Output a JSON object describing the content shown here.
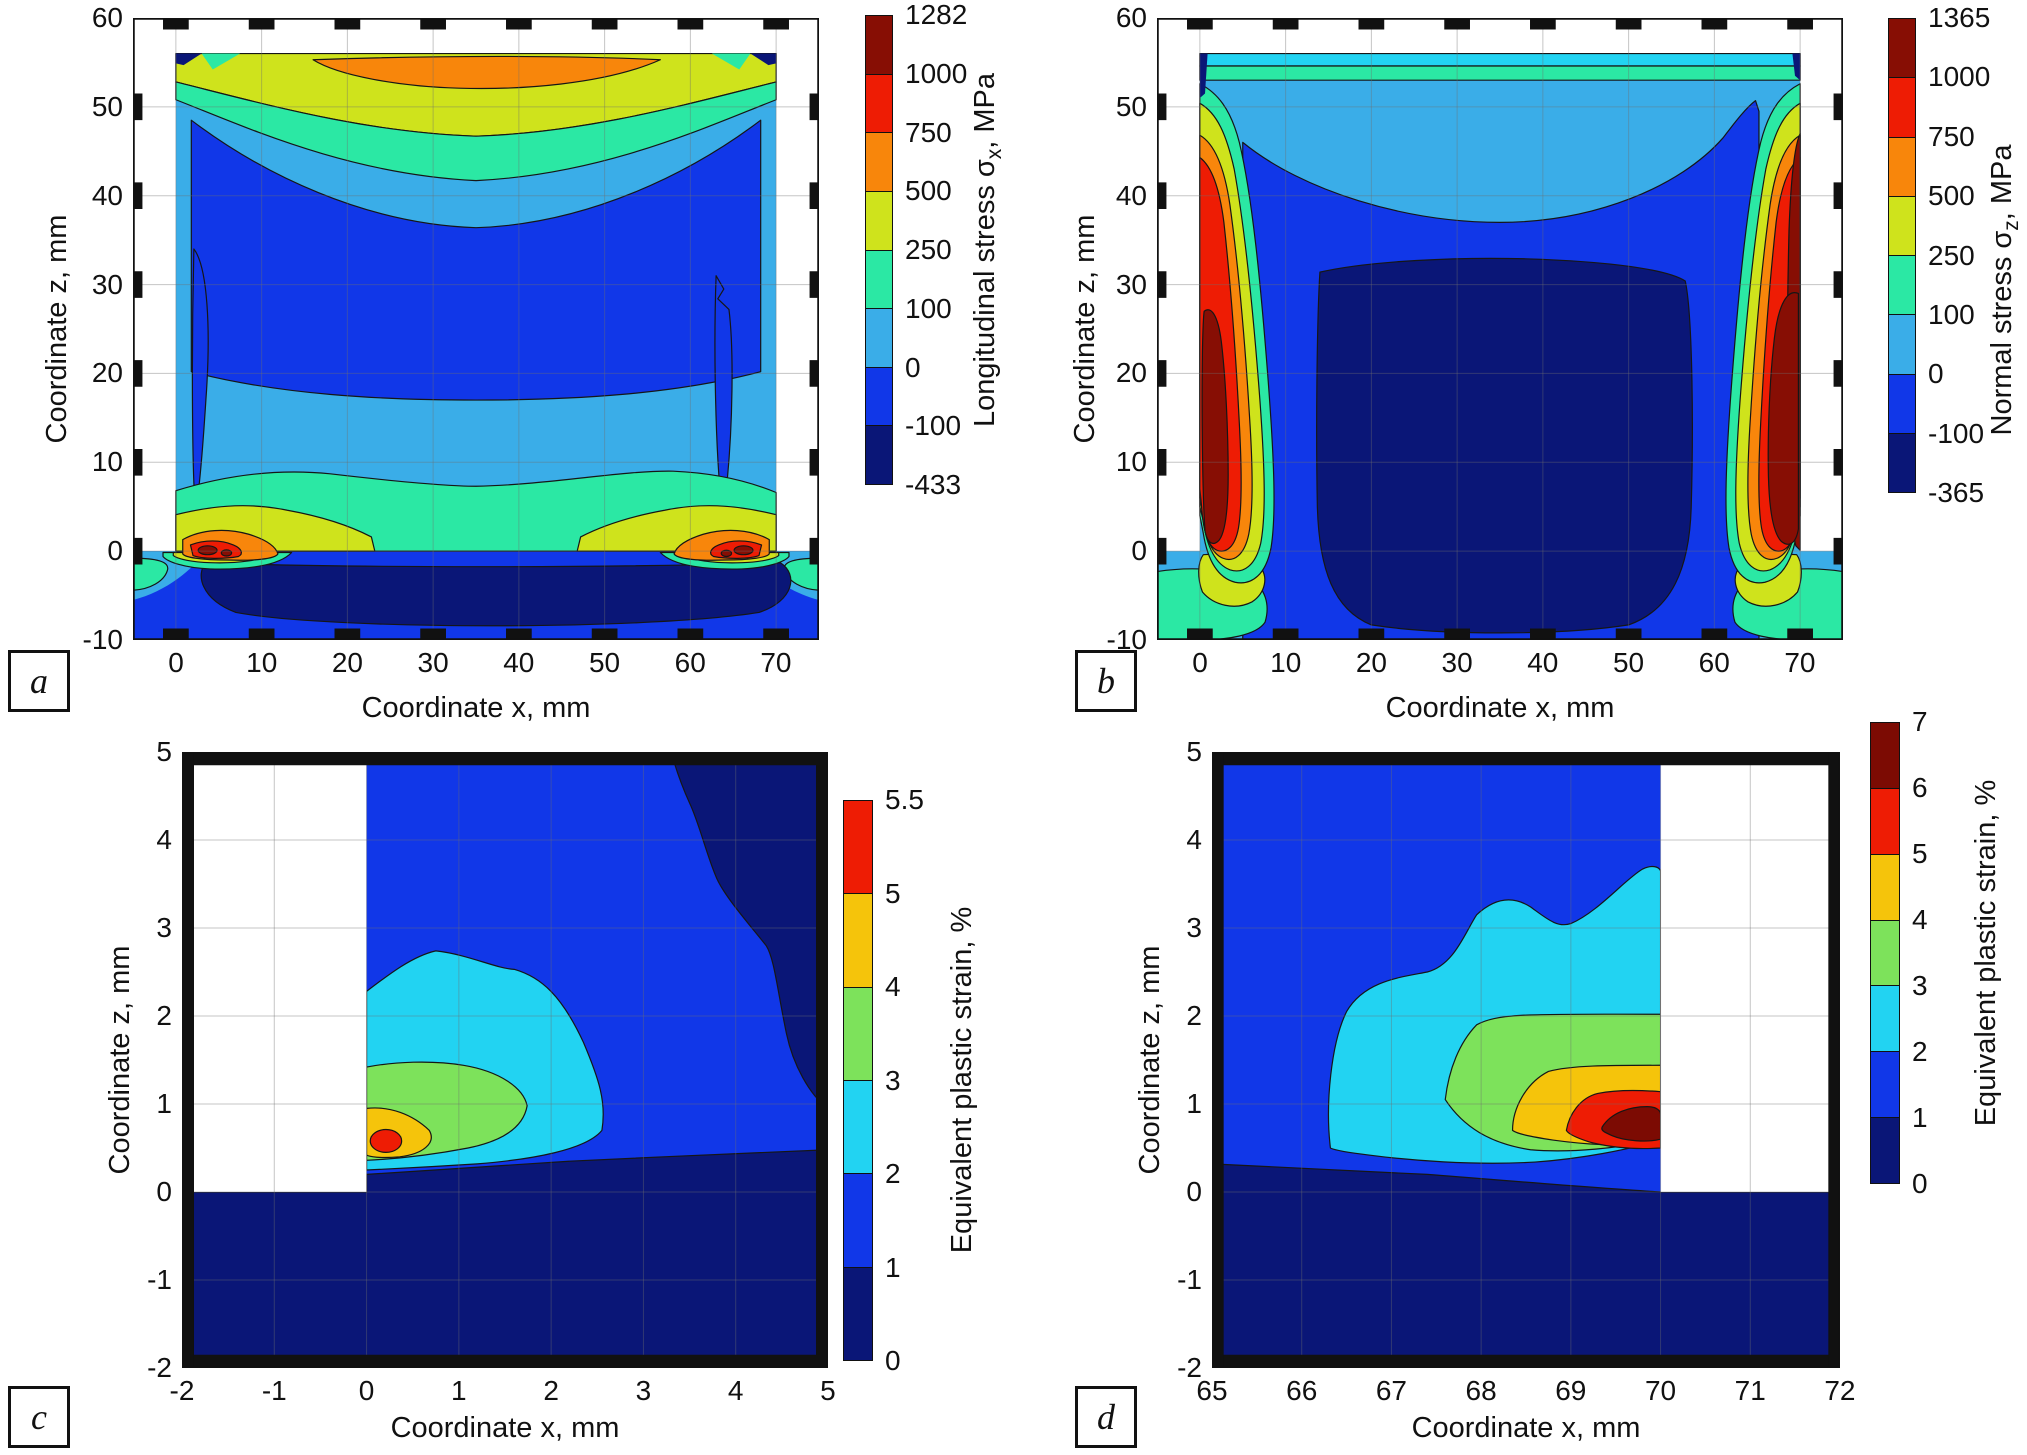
{
  "palette": {
    "darkred": "#870e04",
    "red": "#ee1c04",
    "orange": "#f8860b",
    "yellow": "#cfe31c",
    "spring": "#2be8a4",
    "sky": "#3aade8",
    "blue": "#1137e8",
    "navy": "#0a1677",
    "cyan": "#22d3f2",
    "lgreen": "#7de25b",
    "amber": "#f5c40b",
    "dred2": "#7c0b03"
  },
  "chart_data": [
    {
      "id": "a",
      "type": "contour",
      "badge": "a",
      "xlabel": "Coordinate x, mm",
      "ylabel": "Coordinate z, mm",
      "xlim": [
        -5,
        75
      ],
      "ylim": [
        -10,
        60
      ],
      "x_ticks": [
        "0",
        "10",
        "20",
        "30",
        "40",
        "50",
        "60",
        "70"
      ],
      "y_ticks": [
        "60",
        "50",
        "40",
        "30",
        "20",
        "10",
        "0",
        "-10"
      ],
      "colorbar": {
        "label_prefix": "Longitudinal stress σ",
        "label_sub": "x",
        "label_suffix": ", MPa",
        "tick_labels": [
          "1282",
          "1000",
          "750",
          "500",
          "250",
          "100",
          "0",
          "-100",
          "-433"
        ],
        "levels_mpa": [
          1282,
          1000,
          750,
          500,
          250,
          100,
          0,
          -100,
          -433
        ],
        "colors": [
          "#870e04",
          "#ee1c04",
          "#f8860b",
          "#cfe31c",
          "#2be8a4",
          "#3aade8",
          "#1137e8",
          "#0a1677"
        ]
      },
      "features": {
        "description": "Longitudinal residual stress in deposited wall (x 0–70 mm, z 0–56 mm) on substrate plate (z −10–0 mm)",
        "top_tension_band": "σx ≈ 500–750 MPa lens at top surface z ≈ 52–56 mm, x ≈ 16–57 mm",
        "peak_tension_spots_mm": [
          {
            "x": 4,
            "z": 0
          },
          {
            "x": 65,
            "z": 0
          }
        ],
        "peak_value_mpa": 1282,
        "substrate_compression": "σx ≈ −433…−100 MPa in substrate core z ≈ −1…−8 mm",
        "interior": "σx ≈ −100…100 MPa in wall interior"
      }
    },
    {
      "id": "b",
      "type": "contour",
      "badge": "b",
      "xlabel": "Coordinate x, mm",
      "ylabel": "Coordinate z, mm",
      "xlim": [
        -5,
        75
      ],
      "ylim": [
        -10,
        60
      ],
      "x_ticks": [
        "0",
        "10",
        "20",
        "30",
        "40",
        "50",
        "60",
        "70"
      ],
      "y_ticks": [
        "60",
        "50",
        "40",
        "30",
        "20",
        "10",
        "0",
        "-10"
      ],
      "colorbar": {
        "label_prefix": "Normal stress σ",
        "label_sub": "z",
        "label_suffix": ", MPa",
        "tick_labels": [
          "1365",
          "1000",
          "750",
          "500",
          "250",
          "100",
          "0",
          "-100",
          "-365"
        ],
        "levels_mpa": [
          1365,
          1000,
          750,
          500,
          250,
          100,
          0,
          -100,
          -365
        ],
        "colors": [
          "#870e04",
          "#ee1c04",
          "#f8860b",
          "#cfe31c",
          "#2be8a4",
          "#3aade8",
          "#1137e8",
          "#0a1677"
        ]
      },
      "features": {
        "description": "Normal (vertical) residual stress: tension columns at both wall side faces, compression core in wall centre",
        "tension_columns_mm": [
          {
            "x": 2,
            "z_range": [
              0,
              45
            ]
          },
          {
            "x": 68,
            "z_range": [
              0,
              45
            ]
          }
        ],
        "peak_value_mpa": 1365,
        "compression_core": "σz ≈ −365…−100 MPa for x ≈ 15–55 mm, z ≈ −9…33 mm"
      }
    },
    {
      "id": "c",
      "type": "contour",
      "badge": "c",
      "xlabel": "Coordinate x, mm",
      "ylabel": "Coordinate z, mm",
      "xlim": [
        -2,
        5
      ],
      "ylim": [
        -2,
        5
      ],
      "x_ticks": [
        "-2",
        "-1",
        "0",
        "1",
        "2",
        "3",
        "4",
        "5"
      ],
      "y_ticks": [
        "5",
        "4",
        "3",
        "2",
        "1",
        "0",
        "-1",
        "-2"
      ],
      "colorbar": {
        "label_prefix": "Equivalent plastic strain, %",
        "label_sub": "",
        "label_suffix": "",
        "tick_labels": [
          "5.5",
          "5",
          "4",
          "3",
          "2",
          "1",
          "0"
        ],
        "levels_pct": [
          5.5,
          5,
          4,
          3,
          2,
          1,
          0
        ],
        "colors": [
          "#ee1c04",
          "#f5c40b",
          "#7de25b",
          "#22d3f2",
          "#1137e8",
          "#0a1677"
        ]
      },
      "features": {
        "description": "Equivalent plastic strain at wall start corner (x = 0 mm) on substrate interface",
        "max_strain_pct": 5.5,
        "max_location_mm": {
          "x": 0.2,
          "z": 0.6
        },
        "void_region": "white: x < 0, z > 0 (outside deposited wall)"
      }
    },
    {
      "id": "d",
      "type": "contour",
      "badge": "d",
      "xlabel": "Coordinate x, mm",
      "ylabel": "Coordinate z, mm",
      "xlim": [
        65,
        72
      ],
      "ylim": [
        -2,
        5
      ],
      "x_ticks": [
        "65",
        "66",
        "67",
        "68",
        "69",
        "70",
        "71",
        "72"
      ],
      "y_ticks": [
        "5",
        "4",
        "3",
        "2",
        "1",
        "0",
        "-1",
        "-2"
      ],
      "colorbar": {
        "label_prefix": "Equivalent plastic strain, %",
        "label_sub": "",
        "label_suffix": "",
        "tick_labels": [
          "7",
          "6",
          "5",
          "4",
          "3",
          "2",
          "1",
          "0"
        ],
        "levels_pct": [
          7,
          6,
          5,
          4,
          3,
          2,
          1,
          0
        ],
        "colors": [
          "#7c0b03",
          "#ee1c04",
          "#f5c40b",
          "#7de25b",
          "#22d3f2",
          "#1137e8",
          "#0a1677"
        ]
      },
      "features": {
        "description": "Equivalent plastic strain at wall end corner (x = 70 mm) on substrate interface",
        "max_strain_pct": 7,
        "max_location_mm": {
          "x": 69.6,
          "z": 0.7
        },
        "void_region": "white: x > 70, z > 0 (outside deposited wall)"
      }
    }
  ]
}
